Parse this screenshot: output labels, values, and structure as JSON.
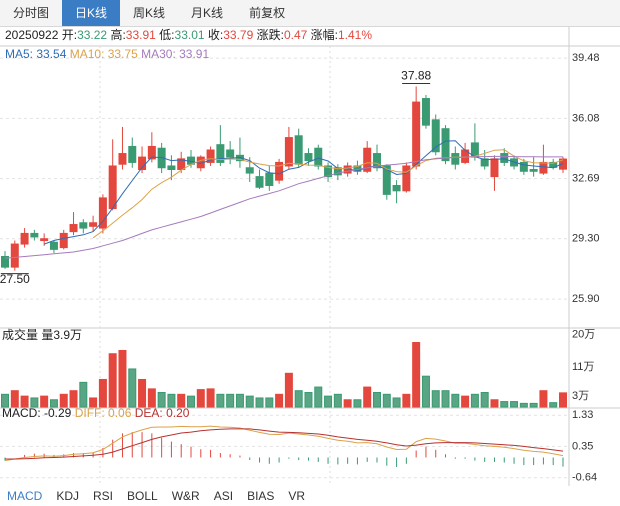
{
  "tabs": [
    "分时图",
    "日K线",
    "周K线",
    "月K线",
    "前复权"
  ],
  "active_tab": 1,
  "quote": {
    "date": "20250922",
    "fields": [
      {
        "label": "开:",
        "value": "33.22",
        "color": "#3a9b73"
      },
      {
        "label": "高:",
        "value": "33.91",
        "color": "#e4473d"
      },
      {
        "label": "低:",
        "value": "33.01",
        "color": "#3a9b73"
      },
      {
        "label": "收:",
        "value": "33.79",
        "color": "#e4473d"
      },
      {
        "label": "涨跌:",
        "value": "0.47",
        "color": "#e4473d"
      },
      {
        "label": "涨幅:",
        "value": "1.41%",
        "color": "#e4473d"
      }
    ]
  },
  "chart_data": [
    {
      "type": "candlestick",
      "up_color": "#e4473d",
      "down_color": "#3a9b73",
      "open": [
        28.3,
        27.7,
        29.0,
        29.6,
        29.2,
        29.1,
        28.8,
        29.7,
        30.2,
        30.0,
        29.9,
        31.0,
        33.5,
        34.5,
        33.2,
        33.8,
        34.4,
        33.4,
        33.2,
        33.9,
        33.3,
        33.6,
        34.6,
        34.3,
        34.0,
        33.3,
        32.8,
        33.0,
        32.6,
        33.4,
        35.1,
        34.1,
        34.4,
        33.4,
        33.3,
        33.0,
        33.4,
        33.1,
        34.1,
        33.4,
        32.3,
        32.0,
        33.4,
        37.2,
        36.0,
        35.5,
        34.1,
        33.6,
        34.7,
        33.8,
        32.8,
        34.1,
        33.8,
        33.6,
        33.2,
        33.0,
        33.6,
        33.22
      ],
      "high": [
        28.6,
        29.2,
        29.9,
        29.8,
        29.6,
        29.2,
        29.8,
        30.8,
        30.4,
        30.6,
        31.8,
        34.9,
        35.6,
        35.0,
        34.5,
        35.3,
        34.7,
        34.0,
        34.2,
        34.3,
        34.0,
        34.5,
        35.7,
        34.8,
        35.0,
        33.9,
        33.2,
        33.4,
        33.8,
        35.6,
        35.5,
        34.4,
        34.6,
        33.6,
        33.5,
        33.6,
        33.7,
        34.8,
        34.6,
        33.5,
        32.6,
        33.6,
        37.88,
        37.4,
        36.3,
        35.7,
        34.5,
        34.7,
        35.8,
        34.3,
        34.0,
        34.4,
        34.0,
        33.8,
        33.9,
        34.6,
        33.8,
        33.91
      ],
      "low": [
        27.6,
        27.5,
        28.8,
        29.2,
        28.9,
        28.5,
        28.7,
        29.5,
        29.6,
        29.7,
        29.6,
        30.9,
        33.2,
        33.3,
        33.0,
        33.6,
        33.0,
        32.6,
        33.0,
        33.3,
        33.1,
        33.4,
        33.4,
        33.5,
        33.3,
        32.5,
        32.1,
        32.0,
        32.4,
        33.2,
        33.3,
        33.4,
        33.2,
        32.5,
        32.6,
        32.8,
        32.9,
        33.0,
        33.1,
        31.5,
        31.3,
        31.9,
        33.2,
        35.5,
        34.0,
        33.5,
        33.2,
        33.5,
        33.7,
        33.2,
        32.0,
        33.4,
        33.2,
        32.9,
        32.8,
        32.9,
        33.2,
        33.01
      ],
      "close": [
        27.7,
        29.0,
        29.6,
        29.4,
        29.3,
        28.7,
        29.6,
        30.1,
        29.9,
        30.2,
        31.6,
        33.4,
        34.1,
        33.6,
        33.9,
        34.5,
        33.3,
        33.2,
        33.8,
        33.5,
        33.9,
        34.3,
        33.6,
        33.9,
        33.7,
        33.0,
        32.2,
        32.3,
        33.6,
        35.0,
        33.5,
        33.7,
        33.4,
        32.8,
        32.9,
        33.4,
        33.1,
        34.4,
        33.3,
        31.8,
        32.0,
        33.4,
        37.0,
        35.7,
        34.2,
        33.7,
        33.5,
        34.3,
        33.9,
        33.4,
        33.8,
        33.6,
        33.4,
        33.1,
        33.1,
        33.6,
        33.32,
        33.79
      ],
      "ma": [
        {
          "name": "MA5: 33.54",
          "color": "#2f6db5",
          "values": [
            null,
            null,
            null,
            null,
            29.0,
            29.2,
            29.32,
            29.42,
            29.52,
            29.7,
            30.28,
            31.04,
            31.84,
            32.58,
            33.32,
            33.9,
            33.88,
            33.7,
            33.74,
            33.66,
            33.54,
            33.74,
            33.82,
            33.84,
            33.88,
            33.7,
            33.28,
            33.02,
            32.96,
            33.22,
            33.32,
            33.62,
            33.84,
            33.68,
            33.26,
            33.24,
            33.12,
            33.32,
            33.42,
            33.2,
            32.92,
            32.98,
            33.5,
            33.98,
            34.46,
            34.8,
            34.82,
            34.28,
            33.92,
            33.76,
            33.78,
            33.8,
            33.62,
            33.46,
            33.4,
            33.36,
            33.3,
            33.54
          ]
        },
        {
          "name": "MA10: 33.75",
          "color": "#dba24a",
          "values": [
            null,
            null,
            null,
            null,
            null,
            null,
            null,
            null,
            null,
            29.35,
            29.74,
            30.18,
            30.63,
            31.05,
            31.51,
            32.09,
            32.46,
            32.77,
            33.16,
            33.49,
            33.72,
            33.81,
            33.76,
            33.79,
            33.77,
            33.62,
            33.51,
            33.42,
            33.4,
            33.55,
            33.51,
            33.45,
            33.43,
            33.32,
            33.24,
            33.28,
            33.37,
            33.58,
            33.55,
            33.23,
            33.08,
            33.05,
            33.41,
            33.7,
            33.83,
            33.86,
            33.9,
            33.89,
            33.95,
            34.11,
            34.29,
            34.31,
            33.95,
            33.69,
            33.58,
            33.57,
            33.55,
            33.75
          ]
        },
        {
          "name": "MA30: 33.91",
          "color": "#a57bbd",
          "values": [
            28.2,
            28.25,
            28.3,
            28.35,
            28.4,
            28.45,
            28.5,
            28.55,
            28.65,
            28.75,
            28.9,
            29.05,
            29.2,
            29.4,
            29.6,
            29.8,
            29.95,
            30.1,
            30.25,
            30.4,
            30.55,
            30.75,
            30.95,
            31.15,
            31.35,
            31.55,
            31.7,
            31.85,
            32.0,
            32.2,
            32.4,
            32.55,
            32.7,
            32.85,
            33.0,
            33.1,
            33.2,
            33.3,
            33.4,
            33.45,
            33.5,
            33.55,
            33.65,
            33.75,
            33.8,
            33.85,
            33.88,
            33.9,
            33.92,
            33.93,
            33.94,
            33.94,
            33.93,
            33.92,
            33.92,
            33.91,
            33.91,
            33.91
          ]
        }
      ],
      "annotations": [
        {
          "value": 37.88,
          "label": "37.88",
          "index": 42
        },
        {
          "value": 27.5,
          "label": "27.50",
          "index": 1
        }
      ],
      "ylim": [
        24.27,
        40.16
      ],
      "yticks": [
        39.48,
        36.08,
        32.69,
        {
          "value": 29.3,
          "label": "29.30"
        },
        {
          "value": 25.9,
          "label": "25.90"
        }
      ]
    },
    {
      "type": "volume",
      "title": "成交量",
      "label": "量3.9万",
      "values": [
        3.5,
        4.5,
        3,
        2.5,
        3,
        2,
        3.5,
        4.5,
        6.8,
        2.5,
        7.6,
        14.7,
        15.6,
        10.5,
        7.6,
        5,
        4,
        3.5,
        3.5,
        3,
        4.8,
        5,
        3.5,
        3.5,
        3.5,
        3,
        2.5,
        2.5,
        3.5,
        9.3,
        4.5,
        4,
        5.5,
        3,
        3.5,
        2,
        2,
        5.5,
        4,
        3.5,
        2.5,
        3.5,
        17.8,
        8.5,
        4.5,
        4.5,
        3.5,
        3,
        3.5,
        4,
        2,
        1.5,
        1.5,
        1,
        1,
        4.5,
        1.2,
        3.9
      ],
      "ylim": [
        0,
        21.8
      ],
      "yticks": [
        {
          "value": 20,
          "label": "20万"
        },
        {
          "value": 11,
          "label": "11万"
        },
        {
          "value": 3,
          "label": "3万"
        }
      ]
    },
    {
      "type": "macd",
      "up_color": "#e4473d",
      "down_color": "#3a9b73",
      "histogram": {
        "name": "MACD: -0.29",
        "color": "#222222",
        "values": [
          -0.1,
          0,
          0.08,
          0.12,
          0.12,
          0.08,
          0.1,
          0.14,
          0.14,
          0.16,
          0.3,
          0.56,
          0.76,
          0.8,
          0.8,
          0.76,
          0.62,
          0.5,
          0.42,
          0.34,
          0.26,
          0.24,
          0.14,
          0.1,
          0.06,
          -0.08,
          -0.16,
          -0.2,
          -0.16,
          -0.04,
          -0.08,
          -0.1,
          -0.14,
          -0.2,
          -0.22,
          -0.2,
          -0.22,
          -0.14,
          -0.16,
          -0.26,
          -0.3,
          -0.2,
          0.22,
          0.34,
          0.24,
          0.1,
          -0.04,
          -0.04,
          -0.1,
          -0.14,
          -0.14,
          -0.16,
          -0.2,
          -0.24,
          -0.24,
          -0.22,
          -0.24,
          -0.29
        ]
      },
      "lines": [
        {
          "name": "DIFF: 0.06",
          "color": "#dba24a",
          "values": [
            -0.1,
            -0.05,
            0.0,
            0.03,
            0.05,
            0.04,
            0.06,
            0.1,
            0.12,
            0.15,
            0.25,
            0.45,
            0.65,
            0.77,
            0.87,
            0.95,
            0.96,
            0.96,
            0.98,
            0.97,
            0.97,
            0.99,
            0.96,
            0.95,
            0.93,
            0.86,
            0.79,
            0.73,
            0.72,
            0.77,
            0.74,
            0.71,
            0.67,
            0.6,
            0.54,
            0.51,
            0.46,
            0.47,
            0.43,
            0.33,
            0.25,
            0.26,
            0.5,
            0.6,
            0.58,
            0.52,
            0.45,
            0.45,
            0.41,
            0.37,
            0.35,
            0.32,
            0.28,
            0.23,
            0.19,
            0.17,
            0.12,
            0.06
          ]
        },
        {
          "name": "DEA: 0.20",
          "color": "#b8312f",
          "values": [
            -0.05,
            -0.05,
            -0.04,
            -0.03,
            -0.01,
            0.0,
            0.01,
            0.03,
            0.05,
            0.07,
            0.1,
            0.17,
            0.27,
            0.37,
            0.47,
            0.57,
            0.65,
            0.71,
            0.77,
            0.8,
            0.84,
            0.87,
            0.89,
            0.9,
            0.9,
            0.9,
            0.87,
            0.83,
            0.8,
            0.79,
            0.78,
            0.76,
            0.74,
            0.7,
            0.65,
            0.61,
            0.57,
            0.54,
            0.51,
            0.46,
            0.4,
            0.36,
            0.39,
            0.43,
            0.46,
            0.47,
            0.47,
            0.47,
            0.46,
            0.44,
            0.42,
            0.4,
            0.38,
            0.35,
            0.31,
            0.28,
            0.24,
            0.2
          ]
        }
      ],
      "ylim": [
        -0.9,
        1.56
      ],
      "yticks": [
        1.33,
        0.35,
        -0.64
      ]
    }
  ],
  "indicator_tabs": [
    "MACD",
    "KDJ",
    "RSI",
    "BOLL",
    "W&R",
    "ASI",
    "BIAS",
    "VR"
  ],
  "active_indicator": 0
}
